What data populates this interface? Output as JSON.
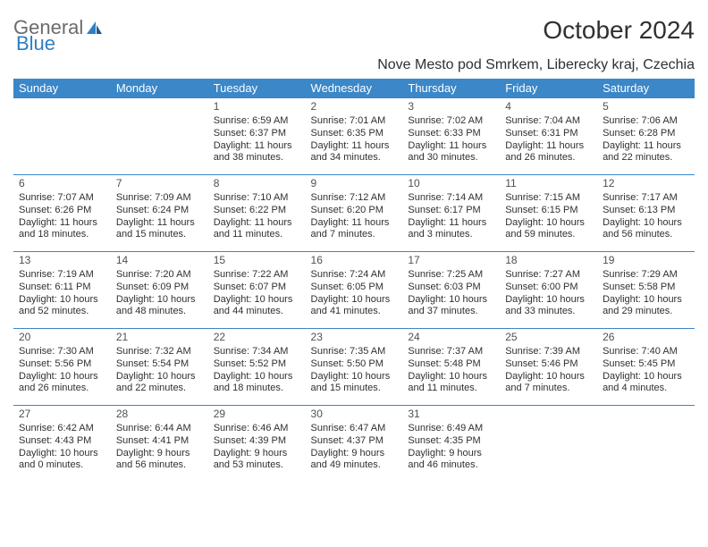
{
  "logo": {
    "text1": "General",
    "text2": "Blue"
  },
  "title": "October 2024",
  "subtitle": "Nove Mesto pod Smrkem, Liberecky kraj, Czechia",
  "colors": {
    "header_bg": "#3b87c8",
    "header_fg": "#ffffff",
    "border": "#3b87c8",
    "text": "#303030",
    "logo_gray": "#6b6b6b",
    "logo_blue": "#2f7ec3",
    "background": "#ffffff"
  },
  "calendar": {
    "type": "table",
    "day_headers": [
      "Sunday",
      "Monday",
      "Tuesday",
      "Wednesday",
      "Thursday",
      "Friday",
      "Saturday"
    ],
    "weeks": [
      [
        null,
        null,
        {
          "n": "1",
          "sr": "Sunrise: 6:59 AM",
          "ss": "Sunset: 6:37 PM",
          "dl1": "Daylight: 11 hours",
          "dl2": "and 38 minutes."
        },
        {
          "n": "2",
          "sr": "Sunrise: 7:01 AM",
          "ss": "Sunset: 6:35 PM",
          "dl1": "Daylight: 11 hours",
          "dl2": "and 34 minutes."
        },
        {
          "n": "3",
          "sr": "Sunrise: 7:02 AM",
          "ss": "Sunset: 6:33 PM",
          "dl1": "Daylight: 11 hours",
          "dl2": "and 30 minutes."
        },
        {
          "n": "4",
          "sr": "Sunrise: 7:04 AM",
          "ss": "Sunset: 6:31 PM",
          "dl1": "Daylight: 11 hours",
          "dl2": "and 26 minutes."
        },
        {
          "n": "5",
          "sr": "Sunrise: 7:06 AM",
          "ss": "Sunset: 6:28 PM",
          "dl1": "Daylight: 11 hours",
          "dl2": "and 22 minutes."
        }
      ],
      [
        {
          "n": "6",
          "sr": "Sunrise: 7:07 AM",
          "ss": "Sunset: 6:26 PM",
          "dl1": "Daylight: 11 hours",
          "dl2": "and 18 minutes."
        },
        {
          "n": "7",
          "sr": "Sunrise: 7:09 AM",
          "ss": "Sunset: 6:24 PM",
          "dl1": "Daylight: 11 hours",
          "dl2": "and 15 minutes."
        },
        {
          "n": "8",
          "sr": "Sunrise: 7:10 AM",
          "ss": "Sunset: 6:22 PM",
          "dl1": "Daylight: 11 hours",
          "dl2": "and 11 minutes."
        },
        {
          "n": "9",
          "sr": "Sunrise: 7:12 AM",
          "ss": "Sunset: 6:20 PM",
          "dl1": "Daylight: 11 hours",
          "dl2": "and 7 minutes."
        },
        {
          "n": "10",
          "sr": "Sunrise: 7:14 AM",
          "ss": "Sunset: 6:17 PM",
          "dl1": "Daylight: 11 hours",
          "dl2": "and 3 minutes."
        },
        {
          "n": "11",
          "sr": "Sunrise: 7:15 AM",
          "ss": "Sunset: 6:15 PM",
          "dl1": "Daylight: 10 hours",
          "dl2": "and 59 minutes."
        },
        {
          "n": "12",
          "sr": "Sunrise: 7:17 AM",
          "ss": "Sunset: 6:13 PM",
          "dl1": "Daylight: 10 hours",
          "dl2": "and 56 minutes."
        }
      ],
      [
        {
          "n": "13",
          "sr": "Sunrise: 7:19 AM",
          "ss": "Sunset: 6:11 PM",
          "dl1": "Daylight: 10 hours",
          "dl2": "and 52 minutes."
        },
        {
          "n": "14",
          "sr": "Sunrise: 7:20 AM",
          "ss": "Sunset: 6:09 PM",
          "dl1": "Daylight: 10 hours",
          "dl2": "and 48 minutes."
        },
        {
          "n": "15",
          "sr": "Sunrise: 7:22 AM",
          "ss": "Sunset: 6:07 PM",
          "dl1": "Daylight: 10 hours",
          "dl2": "and 44 minutes."
        },
        {
          "n": "16",
          "sr": "Sunrise: 7:24 AM",
          "ss": "Sunset: 6:05 PM",
          "dl1": "Daylight: 10 hours",
          "dl2": "and 41 minutes."
        },
        {
          "n": "17",
          "sr": "Sunrise: 7:25 AM",
          "ss": "Sunset: 6:03 PM",
          "dl1": "Daylight: 10 hours",
          "dl2": "and 37 minutes."
        },
        {
          "n": "18",
          "sr": "Sunrise: 7:27 AM",
          "ss": "Sunset: 6:00 PM",
          "dl1": "Daylight: 10 hours",
          "dl2": "and 33 minutes."
        },
        {
          "n": "19",
          "sr": "Sunrise: 7:29 AM",
          "ss": "Sunset: 5:58 PM",
          "dl1": "Daylight: 10 hours",
          "dl2": "and 29 minutes."
        }
      ],
      [
        {
          "n": "20",
          "sr": "Sunrise: 7:30 AM",
          "ss": "Sunset: 5:56 PM",
          "dl1": "Daylight: 10 hours",
          "dl2": "and 26 minutes."
        },
        {
          "n": "21",
          "sr": "Sunrise: 7:32 AM",
          "ss": "Sunset: 5:54 PM",
          "dl1": "Daylight: 10 hours",
          "dl2": "and 22 minutes."
        },
        {
          "n": "22",
          "sr": "Sunrise: 7:34 AM",
          "ss": "Sunset: 5:52 PM",
          "dl1": "Daylight: 10 hours",
          "dl2": "and 18 minutes."
        },
        {
          "n": "23",
          "sr": "Sunrise: 7:35 AM",
          "ss": "Sunset: 5:50 PM",
          "dl1": "Daylight: 10 hours",
          "dl2": "and 15 minutes."
        },
        {
          "n": "24",
          "sr": "Sunrise: 7:37 AM",
          "ss": "Sunset: 5:48 PM",
          "dl1": "Daylight: 10 hours",
          "dl2": "and 11 minutes."
        },
        {
          "n": "25",
          "sr": "Sunrise: 7:39 AM",
          "ss": "Sunset: 5:46 PM",
          "dl1": "Daylight: 10 hours",
          "dl2": "and 7 minutes."
        },
        {
          "n": "26",
          "sr": "Sunrise: 7:40 AM",
          "ss": "Sunset: 5:45 PM",
          "dl1": "Daylight: 10 hours",
          "dl2": "and 4 minutes."
        }
      ],
      [
        {
          "n": "27",
          "sr": "Sunrise: 6:42 AM",
          "ss": "Sunset: 4:43 PM",
          "dl1": "Daylight: 10 hours",
          "dl2": "and 0 minutes."
        },
        {
          "n": "28",
          "sr": "Sunrise: 6:44 AM",
          "ss": "Sunset: 4:41 PM",
          "dl1": "Daylight: 9 hours",
          "dl2": "and 56 minutes."
        },
        {
          "n": "29",
          "sr": "Sunrise: 6:46 AM",
          "ss": "Sunset: 4:39 PM",
          "dl1": "Daylight: 9 hours",
          "dl2": "and 53 minutes."
        },
        {
          "n": "30",
          "sr": "Sunrise: 6:47 AM",
          "ss": "Sunset: 4:37 PM",
          "dl1": "Daylight: 9 hours",
          "dl2": "and 49 minutes."
        },
        {
          "n": "31",
          "sr": "Sunrise: 6:49 AM",
          "ss": "Sunset: 4:35 PM",
          "dl1": "Daylight: 9 hours",
          "dl2": "and 46 minutes."
        },
        null,
        null
      ]
    ]
  }
}
